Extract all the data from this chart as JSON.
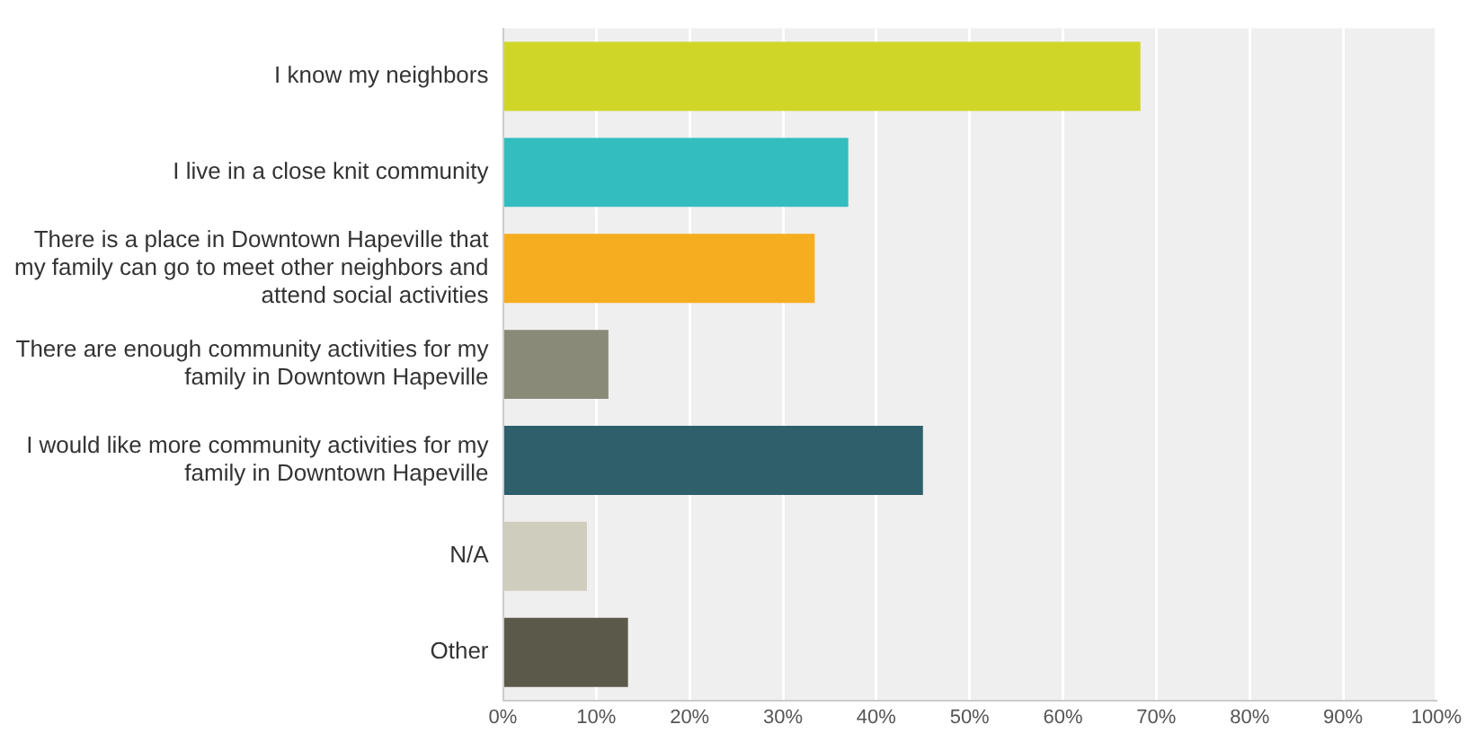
{
  "chart_data": {
    "type": "bar",
    "orientation": "horizontal",
    "categories": [
      "I know my neighbors",
      "I live in a close knit community",
      "There is a place in Downtown Hapeville that my family can go to meet other neighbors and attend social activities",
      "There are enough community activities for my family in Downtown Hapeville",
      "I would like more community activities for my family in Downtown Hapeville",
      "N/A",
      "Other"
    ],
    "values": [
      68.3,
      37.0,
      33.4,
      11.3,
      45.0,
      9.0,
      13.4
    ],
    "colors": [
      "#cfd628",
      "#33bdbf",
      "#f6ad1f",
      "#898a78",
      "#2e5f6b",
      "#cfcdbd",
      "#5b5a4a"
    ],
    "xlim": [
      0,
      100
    ],
    "xticks": [
      {
        "value": 0,
        "label": "0%"
      },
      {
        "value": 10,
        "label": "10%"
      },
      {
        "value": 20,
        "label": "20%"
      },
      {
        "value": 30,
        "label": "30%"
      },
      {
        "value": 40,
        "label": "40%"
      },
      {
        "value": 50,
        "label": "50%"
      },
      {
        "value": 60,
        "label": "60%"
      },
      {
        "value": 70,
        "label": "70%"
      },
      {
        "value": 80,
        "label": "80%"
      },
      {
        "value": 90,
        "label": "90%"
      },
      {
        "value": 100,
        "label": "100%"
      }
    ],
    "grid": "x",
    "legend": false
  }
}
